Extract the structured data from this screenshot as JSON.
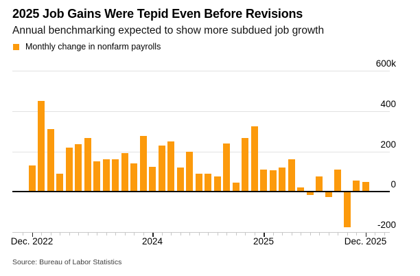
{
  "header": {
    "title": "2025 Job Gains Were Tepid Even Before Revisions",
    "subtitle": "Annual benchmarking expected to show more subdued job growth"
  },
  "legend": {
    "label": "Monthly change in nonfarm payrolls",
    "color": "#FC9A0C"
  },
  "source": "Source: Bureau of Labor Statistics",
  "colors": {
    "bar": "#FC9A0C",
    "gridline": "#e2e2e2",
    "zero_line": "#000000",
    "axis_line": "#c9c9c9"
  },
  "chart_data": {
    "type": "bar",
    "title": "Monthly change in nonfarm payrolls",
    "unit": "thousands of jobs",
    "x": [
      "Dec 2022",
      "Jan 2023",
      "Feb 2023",
      "Mar 2023",
      "Apr 2023",
      "May 2023",
      "Jun 2023",
      "Jul 2023",
      "Aug 2023",
      "Sep 2023",
      "Oct 2023",
      "Nov 2023",
      "Dec 2023",
      "Jan 2024",
      "Feb 2024",
      "Mar 2024",
      "Apr 2024",
      "May 2024",
      "Jun 2024",
      "Jul 2024",
      "Aug 2024",
      "Sep 2024",
      "Oct 2024",
      "Nov 2024",
      "Dec 2024",
      "Jan 2025",
      "Feb 2025",
      "Mar 2025",
      "Apr 2025",
      "May 2025",
      "Jun 2025",
      "Jul 2025",
      "Aug 2025",
      "Sep 2025",
      "Oct 2025",
      "Nov 2025",
      "Dec 2025"
    ],
    "values": [
      130,
      450,
      310,
      90,
      220,
      235,
      265,
      150,
      160,
      160,
      190,
      140,
      275,
      125,
      230,
      250,
      120,
      200,
      90,
      90,
      75,
      240,
      45,
      265,
      325,
      110,
      105,
      120,
      160,
      20,
      -15,
      75,
      -25,
      110,
      -175,
      55,
      50
    ],
    "ylim": [
      -200,
      600
    ],
    "grid": true,
    "legend_position": "top-left",
    "y_ticks": [
      {
        "value": 600,
        "label": "600k"
      },
      {
        "value": 400,
        "label": "400"
      },
      {
        "value": 200,
        "label": "200"
      },
      {
        "value": 0,
        "label": "0"
      },
      {
        "value": -200,
        "label": "-200"
      }
    ],
    "x_ticks": [
      {
        "month_index": 0,
        "label": "Dec. 2022"
      },
      {
        "month_index": 13,
        "label": "2024"
      },
      {
        "month_index": 25,
        "label": "2025"
      },
      {
        "month_index": 36,
        "label": "Dec. 2025"
      }
    ]
  }
}
